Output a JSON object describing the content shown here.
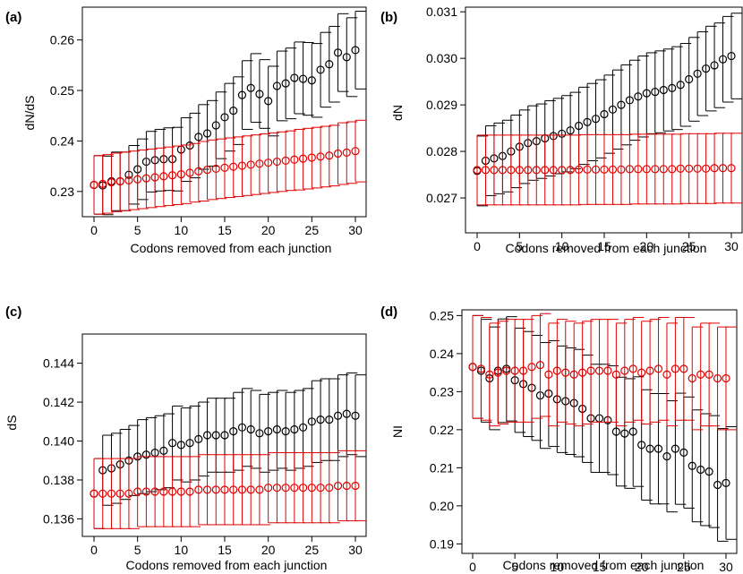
{
  "chart_data": [
    {
      "panel": "(a)",
      "type": "scatter",
      "xlabel": "Codons removed from each junction",
      "ylabel": "dN/dS",
      "xlim": [
        0,
        30
      ],
      "ylim": [
        0.225,
        0.2665
      ],
      "xticks": [
        0,
        5,
        10,
        15,
        20,
        25,
        30
      ],
      "yticks": [
        0.23,
        0.24,
        0.25,
        0.26
      ],
      "ytick_labels": [
        "0.23",
        "0.24",
        "0.25",
        "0.26"
      ],
      "colors": [
        "#000000",
        "#e00000"
      ],
      "series": [
        {
          "x": [
            0,
            1,
            2,
            3,
            4,
            5,
            6,
            7,
            8,
            9,
            10,
            11,
            12,
            13,
            14,
            15,
            16,
            17,
            18,
            19,
            20,
            21,
            22,
            23,
            24,
            25,
            26,
            27,
            28,
            29,
            30
          ],
          "y": [
            0.2313,
            0.2312,
            0.232,
            0.232,
            0.2333,
            0.2344,
            0.2359,
            0.2362,
            0.2364,
            0.2364,
            0.2383,
            0.2391,
            0.2408,
            0.2415,
            0.2431,
            0.2447,
            0.246,
            0.2491,
            0.2505,
            0.2493,
            0.2479,
            0.2509,
            0.2514,
            0.2525,
            0.2523,
            0.252,
            0.2541,
            0.2552,
            0.2575,
            0.2566,
            0.258
          ],
          "err": [
            0.0058,
            0.0058,
            0.0058,
            0.0058,
            0.0058,
            0.006,
            0.006,
            0.0061,
            0.0062,
            0.0063,
            0.0063,
            0.0064,
            0.0064,
            0.0065,
            0.0066,
            0.0067,
            0.0067,
            0.0068,
            0.0068,
            0.0068,
            0.0069,
            0.0069,
            0.007,
            0.0071,
            0.0072,
            0.0073,
            0.0074,
            0.0075,
            0.0077,
            0.0078,
            0.0077
          ]
        },
        {
          "x": [
            0,
            1,
            2,
            3,
            4,
            5,
            6,
            7,
            8,
            9,
            10,
            11,
            12,
            13,
            14,
            15,
            16,
            17,
            18,
            19,
            20,
            21,
            22,
            23,
            24,
            25,
            26,
            27,
            28,
            29,
            30
          ],
          "y": [
            0.2313,
            0.2315,
            0.2318,
            0.232,
            0.2322,
            0.2324,
            0.2326,
            0.2328,
            0.233,
            0.2332,
            0.2334,
            0.2337,
            0.234,
            0.2343,
            0.2345,
            0.2347,
            0.2349,
            0.2351,
            0.2353,
            0.2355,
            0.2357,
            0.2359,
            0.2361,
            0.2363,
            0.2365,
            0.2367,
            0.2369,
            0.2371,
            0.2375,
            0.2377,
            0.238
          ],
          "err": [
            0.0058,
            0.0058,
            0.0058,
            0.0058,
            0.0058,
            0.0058,
            0.0058,
            0.0058,
            0.0058,
            0.0058,
            0.0058,
            0.0058,
            0.0059,
            0.0059,
            0.0059,
            0.0059,
            0.0059,
            0.0059,
            0.0059,
            0.0059,
            0.0059,
            0.0059,
            0.0059,
            0.006,
            0.006,
            0.006,
            0.006,
            0.006,
            0.0061,
            0.0061,
            0.0061
          ]
        }
      ]
    },
    {
      "panel": "(b)",
      "type": "scatter",
      "xlabel": "Codons removed from each junction",
      "ylabel": "dN",
      "xlim": [
        0,
        30
      ],
      "ylim": [
        0.02625,
        0.0311
      ],
      "xticks": [
        0,
        5,
        10,
        15,
        20,
        25,
        30
      ],
      "yticks": [
        0.027,
        0.028,
        0.029,
        0.03,
        0.031
      ],
      "ytick_labels": [
        "0.027",
        "0.028",
        "0.029",
        "0.030",
        "0.031"
      ],
      "colors": [
        "#000000",
        "#e00000"
      ],
      "series": [
        {
          "x": [
            0,
            1,
            2,
            3,
            4,
            5,
            6,
            7,
            8,
            9,
            10,
            11,
            12,
            13,
            14,
            15,
            16,
            17,
            18,
            19,
            20,
            21,
            22,
            23,
            24,
            25,
            26,
            27,
            28,
            29,
            30
          ],
          "y": [
            0.02758,
            0.0278,
            0.02785,
            0.0279,
            0.028,
            0.0281,
            0.02818,
            0.02822,
            0.02828,
            0.02833,
            0.02838,
            0.02845,
            0.02855,
            0.02863,
            0.0287,
            0.0288,
            0.0289,
            0.029,
            0.0291,
            0.02918,
            0.02925,
            0.02928,
            0.02932,
            0.02936,
            0.02943,
            0.02955,
            0.02967,
            0.02978,
            0.02985,
            0.02998,
            0.03005
          ],
          "err": [
            0.00075,
            0.00075,
            0.00076,
            0.00077,
            0.00078,
            0.00079,
            0.0008,
            0.0008,
            0.00081,
            0.00081,
            0.00082,
            0.00082,
            0.00083,
            0.00083,
            0.00084,
            0.00084,
            0.00085,
            0.00086,
            0.00086,
            0.00087,
            0.00087,
            0.00088,
            0.00088,
            0.00089,
            0.00089,
            0.0009,
            0.0009,
            0.00091,
            0.00091,
            0.00092,
            0.00092
          ]
        },
        {
          "x": [
            0,
            1,
            2,
            3,
            4,
            5,
            6,
            7,
            8,
            9,
            10,
            11,
            12,
            13,
            14,
            15,
            16,
            17,
            18,
            19,
            20,
            21,
            22,
            23,
            24,
            25,
            26,
            27,
            28,
            29,
            30
          ],
          "y": [
            0.0276,
            0.0276,
            0.0276,
            0.0276,
            0.0276,
            0.0276,
            0.0276,
            0.0276,
            0.0276,
            0.0276,
            0.0276,
            0.0276,
            0.02761,
            0.02761,
            0.02761,
            0.02761,
            0.02761,
            0.02761,
            0.02762,
            0.02762,
            0.02762,
            0.02762,
            0.02762,
            0.02762,
            0.02763,
            0.02763,
            0.02763,
            0.02763,
            0.02764,
            0.02764,
            0.02764
          ],
          "err": [
            0.00075,
            0.00075,
            0.00075,
            0.00075,
            0.00075,
            0.00075,
            0.00075,
            0.00075,
            0.00075,
            0.00075,
            0.00075,
            0.00075,
            0.00075,
            0.00075,
            0.00075,
            0.00075,
            0.00075,
            0.00075,
            0.00075,
            0.00075,
            0.00075,
            0.00075,
            0.00075,
            0.00075,
            0.00075,
            0.00075,
            0.00075,
            0.00075,
            0.00075,
            0.00075,
            0.00075
          ]
        }
      ]
    },
    {
      "panel": "(c)",
      "type": "scatter",
      "xlabel": "Codons removed from each junction",
      "ylabel": "dS",
      "xlim": [
        0,
        30
      ],
      "ylim": [
        0.1351,
        0.1455
      ],
      "xticks": [
        0,
        5,
        10,
        15,
        20,
        25,
        30
      ],
      "yticks": [
        0.136,
        0.138,
        0.14,
        0.142,
        0.144
      ],
      "ytick_labels": [
        "0.136",
        "0.138",
        "0.140",
        "0.142",
        "0.144"
      ],
      "colors": [
        "#000000",
        "#e00000"
      ],
      "series": [
        {
          "x": [
            0,
            1,
            2,
            3,
            4,
            5,
            6,
            7,
            8,
            9,
            10,
            11,
            12,
            13,
            14,
            15,
            16,
            17,
            18,
            19,
            20,
            21,
            22,
            23,
            24,
            25,
            26,
            27,
            28,
            29,
            30
          ],
          "y": [
            0.1373,
            0.1385,
            0.1386,
            0.1388,
            0.139,
            0.1392,
            0.1393,
            0.1394,
            0.1395,
            0.1399,
            0.1398,
            0.1399,
            0.1401,
            0.1403,
            0.1403,
            0.1403,
            0.1405,
            0.1407,
            0.1406,
            0.1404,
            0.1405,
            0.1406,
            0.1405,
            0.1406,
            0.1407,
            0.141,
            0.1411,
            0.1411,
            0.1413,
            0.1414,
            0.1413
          ],
          "err": [
            0.0018,
            0.0018,
            0.0018,
            0.0018,
            0.0018,
            0.0019,
            0.0019,
            0.0019,
            0.0019,
            0.0019,
            0.0019,
            0.0019,
            0.0019,
            0.0019,
            0.0019,
            0.0019,
            0.002,
            0.002,
            0.002,
            0.002,
            0.002,
            0.002,
            0.002,
            0.002,
            0.002,
            0.0021,
            0.0021,
            0.0021,
            0.0021,
            0.0021,
            0.0021
          ]
        },
        {
          "x": [
            0,
            1,
            2,
            3,
            4,
            5,
            6,
            7,
            8,
            9,
            10,
            11,
            12,
            13,
            14,
            15,
            16,
            17,
            18,
            19,
            20,
            21,
            22,
            23,
            24,
            25,
            26,
            27,
            28,
            29,
            30
          ],
          "y": [
            0.1373,
            0.1373,
            0.1373,
            0.1373,
            0.1373,
            0.1374,
            0.1374,
            0.1374,
            0.1374,
            0.1374,
            0.1374,
            0.1374,
            0.1375,
            0.1375,
            0.1375,
            0.1375,
            0.1375,
            0.1375,
            0.1375,
            0.1375,
            0.1376,
            0.1376,
            0.1376,
            0.1376,
            0.1376,
            0.1376,
            0.1376,
            0.1376,
            0.1377,
            0.1377,
            0.1377
          ],
          "err": [
            0.0018,
            0.0018,
            0.0018,
            0.0018,
            0.0018,
            0.0018,
            0.0018,
            0.0018,
            0.0018,
            0.0018,
            0.0018,
            0.0018,
            0.0018,
            0.0018,
            0.0018,
            0.0018,
            0.0018,
            0.0018,
            0.0018,
            0.0018,
            0.0018,
            0.0018,
            0.0018,
            0.0018,
            0.0018,
            0.0018,
            0.0018,
            0.0018,
            0.0018,
            0.0018,
            0.0018
          ]
        }
      ]
    },
    {
      "panel": "(d)",
      "type": "scatter",
      "xlabel": "Codons removed from each junction",
      "ylabel": "NI",
      "xlim": [
        0,
        30
      ],
      "ylim": [
        0.1875,
        0.2515
      ],
      "xticks": [
        0,
        5,
        10,
        15,
        20,
        25,
        30
      ],
      "yticks": [
        0.19,
        0.2,
        0.21,
        0.22,
        0.23,
        0.24,
        0.25
      ],
      "ytick_labels": [
        "0.19",
        "0.20",
        "0.21",
        "0.22",
        "0.23",
        "0.24",
        "0.25"
      ],
      "colors": [
        "#000000",
        "#e00000"
      ],
      "series": [
        {
          "x": [
            0,
            1,
            2,
            3,
            4,
            5,
            6,
            7,
            8,
            9,
            10,
            11,
            12,
            13,
            14,
            15,
            16,
            17,
            18,
            19,
            20,
            21,
            22,
            23,
            24,
            25,
            26,
            27,
            28,
            29,
            30
          ],
          "y": [
            0.2365,
            0.2355,
            0.2335,
            0.2355,
            0.236,
            0.233,
            0.232,
            0.231,
            0.229,
            0.2295,
            0.228,
            0.2275,
            0.227,
            0.2255,
            0.223,
            0.223,
            0.2225,
            0.2195,
            0.219,
            0.2195,
            0.216,
            0.215,
            0.215,
            0.213,
            0.215,
            0.214,
            0.2105,
            0.2095,
            0.209,
            0.2055,
            0.206
          ],
          "err": [
            0.0135,
            0.0135,
            0.0135,
            0.0136,
            0.0137,
            0.0137,
            0.0138,
            0.0138,
            0.0139,
            0.0139,
            0.014,
            0.014,
            0.0141,
            0.0141,
            0.0142,
            0.0142,
            0.0143,
            0.0143,
            0.0144,
            0.0144,
            0.0145,
            0.0145,
            0.0145,
            0.0146,
            0.0146,
            0.0146,
            0.0147,
            0.0147,
            0.0147,
            0.0148,
            0.0148
          ]
        },
        {
          "x": [
            0,
            1,
            2,
            3,
            4,
            5,
            6,
            7,
            8,
            9,
            10,
            11,
            12,
            13,
            14,
            15,
            16,
            17,
            18,
            19,
            20,
            21,
            22,
            23,
            24,
            25,
            26,
            27,
            28,
            29,
            30
          ],
          "y": [
            0.2365,
            0.236,
            0.2345,
            0.235,
            0.2355,
            0.2355,
            0.2355,
            0.2365,
            0.237,
            0.2345,
            0.2355,
            0.235,
            0.2345,
            0.235,
            0.2355,
            0.2355,
            0.2355,
            0.2345,
            0.2355,
            0.236,
            0.235,
            0.2355,
            0.236,
            0.2345,
            0.236,
            0.236,
            0.2335,
            0.2345,
            0.2345,
            0.2335,
            0.2335
          ],
          "err": [
            0.0135,
            0.0135,
            0.0135,
            0.0135,
            0.0135,
            0.0135,
            0.0135,
            0.0135,
            0.0135,
            0.0135,
            0.0135,
            0.0135,
            0.0135,
            0.0135,
            0.0135,
            0.0135,
            0.0135,
            0.0135,
            0.0135,
            0.0135,
            0.0135,
            0.0135,
            0.0135,
            0.0135,
            0.0135,
            0.0135,
            0.0135,
            0.0135,
            0.0135,
            0.0135,
            0.0135
          ]
        }
      ]
    }
  ]
}
